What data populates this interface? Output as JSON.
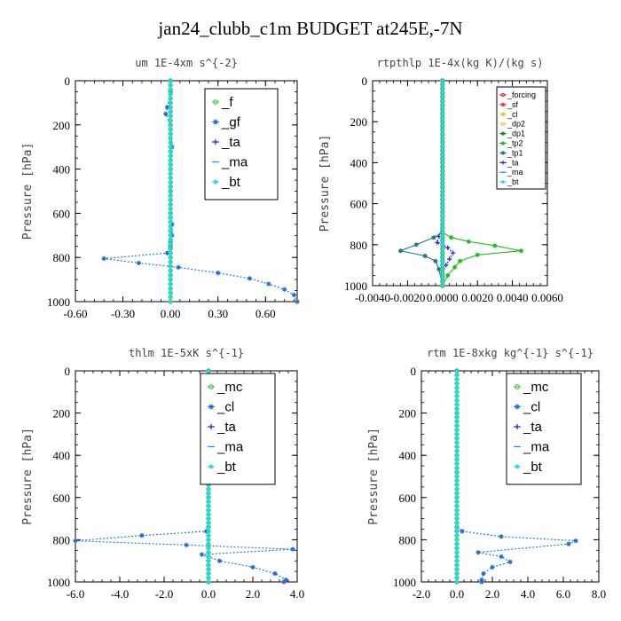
{
  "figure": {
    "title": "jan24_clubb_c1m  BUDGET at245E,-7N"
  },
  "chart_data": [
    {
      "type": "line",
      "title": "um  1E-4xm s^{-2}",
      "ylabel": "Pressure [hPa]",
      "xlim": [
        -0.6,
        0.8
      ],
      "ylim": [
        1000,
        0
      ],
      "xticks": [
        "-0.60",
        "-0.30",
        "0.00",
        "0.30",
        "0.60"
      ],
      "xtick_values": [
        -0.6,
        -0.3,
        0.0,
        0.3,
        0.6
      ],
      "yticks": [
        "0",
        "200",
        "400",
        "600",
        "800",
        "1000"
      ],
      "ytick_values": [
        0,
        200,
        400,
        600,
        800,
        1000
      ],
      "legend": {
        "position": "top-right",
        "fontsize": 15
      },
      "series": [
        {
          "name": "_f",
          "color": "#22cc22",
          "marker": "ring",
          "dashed": false,
          "x": [
            0,
            0,
            0,
            0,
            0,
            0,
            0,
            0,
            0,
            0,
            0
          ],
          "y": [
            0,
            100,
            200,
            300,
            400,
            500,
            600,
            700,
            800,
            900,
            1000
          ]
        },
        {
          "name": "_gf",
          "color": "#1f6fd6",
          "marker": "star",
          "dashed": true,
          "x": [
            0.0,
            0.0,
            -0.02,
            -0.03,
            0.0,
            0.01,
            0.0,
            0.0,
            0.0,
            0.01,
            0.01,
            0.0,
            0.0,
            0.0,
            -0.02,
            -0.42,
            -0.2,
            0.05,
            0.3,
            0.5,
            0.62,
            0.72,
            0.78,
            0.8
          ],
          "y": [
            0,
            50,
            120,
            150,
            200,
            300,
            400,
            500,
            600,
            650,
            700,
            730,
            750,
            760,
            780,
            805,
            825,
            845,
            870,
            895,
            920,
            945,
            970,
            1000
          ]
        },
        {
          "name": "_ta",
          "color": "#1a1ae6",
          "marker": "plus",
          "dashed": true,
          "x": [
            0,
            0,
            0,
            0,
            0,
            0
          ],
          "y": [
            0,
            200,
            400,
            600,
            800,
            1000
          ]
        },
        {
          "name": "_ma",
          "color": "#1aa0e0",
          "marker": "dash",
          "dashed": true,
          "x": [
            0,
            0,
            0,
            0,
            0,
            0
          ],
          "y": [
            0,
            200,
            400,
            600,
            800,
            1000
          ]
        },
        {
          "name": "_bt",
          "color": "#22dddd",
          "marker": "diamond",
          "dashed": false,
          "x": [
            0,
            0,
            0,
            0,
            0,
            0,
            0,
            0,
            0,
            0,
            0
          ],
          "y": [
            0,
            100,
            200,
            300,
            400,
            500,
            600,
            700,
            800,
            900,
            1000
          ]
        }
      ]
    },
    {
      "type": "line",
      "title": "rtpthlp  1E-4x(kg K)/(kg s)",
      "ylabel": "Pressure [hPa]",
      "xlim": [
        -0.004,
        0.006
      ],
      "ylim": [
        1000,
        0
      ],
      "xticks": [
        "-0.0040",
        "-0.0020",
        "0.0000",
        "0.0020",
        "0.0040",
        "0.0060"
      ],
      "xtick_values": [
        -0.004,
        -0.002,
        0.0,
        0.002,
        0.004,
        0.006
      ],
      "yticks": [
        "0",
        "200",
        "400",
        "600",
        "800",
        "1000"
      ],
      "ytick_values": [
        0,
        200,
        400,
        600,
        800,
        1000
      ],
      "legend": {
        "position": "top-right",
        "fontsize": 9
      },
      "series": [
        {
          "name": "_forcing",
          "color": "#dd2222",
          "marker": "ring",
          "dashed": false,
          "x": [
            0,
            0,
            0,
            0,
            0,
            0,
            0,
            0,
            0,
            0,
            0
          ],
          "y": [
            0,
            100,
            200,
            300,
            400,
            500,
            600,
            700,
            800,
            900,
            1000
          ]
        },
        {
          "name": "_sf",
          "color": "#ee3333",
          "marker": "star",
          "dashed": false,
          "x": [
            0,
            0,
            0,
            0,
            0,
            0
          ],
          "y": [
            0,
            200,
            400,
            600,
            800,
            1000
          ]
        },
        {
          "name": "_cl",
          "color": "#e8c020",
          "marker": "star",
          "dashed": false,
          "x": [
            0,
            0,
            0,
            0,
            0,
            0
          ],
          "y": [
            0,
            200,
            400,
            600,
            800,
            1000
          ]
        },
        {
          "name": "_dp2",
          "color": "#e0d060",
          "marker": "box",
          "dashed": false,
          "x": [
            0,
            0,
            0,
            0,
            0,
            0
          ],
          "y": [
            0,
            200,
            400,
            600,
            800,
            1000
          ]
        },
        {
          "name": "_dp1",
          "color": "#228822",
          "marker": "star",
          "dashed": false,
          "x": [
            0,
            0,
            0,
            0,
            0,
            0
          ],
          "y": [
            0,
            200,
            400,
            600,
            800,
            1000
          ]
        },
        {
          "name": "_tp2",
          "color": "#22bb22",
          "marker": "star",
          "dashed": false,
          "x": [
            0.0,
            0.0,
            0.0,
            0.0,
            0.0,
            0.0005,
            0.0015,
            0.003,
            0.0045,
            0.002,
            0.001,
            0.0007,
            0.0003,
            0.0
          ],
          "y": [
            0,
            200,
            400,
            600,
            740,
            765,
            785,
            805,
            830,
            850,
            880,
            910,
            950,
            1000
          ]
        },
        {
          "name": "_tp1",
          "color": "#227788",
          "marker": "star",
          "dashed": false,
          "x": [
            0.0,
            0.0,
            0.0,
            0.0,
            0.0,
            -0.0005,
            -0.0015,
            -0.0024,
            -0.001,
            -0.0004,
            -0.0002,
            0.0
          ],
          "y": [
            0,
            200,
            400,
            600,
            740,
            765,
            800,
            830,
            855,
            880,
            920,
            1000
          ]
        },
        {
          "name": "_ta",
          "color": "#1a1ae6",
          "marker": "plus",
          "dashed": true,
          "x": [
            0,
            0,
            -0.0002,
            -0.0003,
            0.0003,
            0.0006,
            0.0004,
            0.0002,
            0,
            0
          ],
          "y": [
            0,
            700,
            760,
            790,
            815,
            840,
            870,
            900,
            940,
            1000
          ]
        },
        {
          "name": "_ma",
          "color": "#1aa0e0",
          "marker": "dash",
          "dashed": true,
          "x": [
            0,
            0,
            0,
            0,
            0,
            0
          ],
          "y": [
            0,
            200,
            400,
            600,
            800,
            1000
          ]
        },
        {
          "name": "_bt",
          "color": "#22dddd",
          "marker": "diamond",
          "dashed": false,
          "x": [
            0,
            0,
            0,
            0,
            0,
            0
          ],
          "y": [
            0,
            200,
            400,
            600,
            800,
            1000
          ]
        }
      ]
    },
    {
      "type": "line",
      "title": "thlm  1E-5xK s^{-1}",
      "ylabel": "Pressure [hPa]",
      "xlim": [
        -6.0,
        4.0
      ],
      "ylim": [
        1000,
        0
      ],
      "xticks": [
        "-6.0",
        "-4.0",
        "-2.0",
        "0.0",
        "2.0",
        "4.0"
      ],
      "xtick_values": [
        -6.0,
        -4.0,
        -2.0,
        0.0,
        2.0,
        4.0
      ],
      "yticks": [
        "0",
        "200",
        "400",
        "600",
        "800",
        "1000"
      ],
      "ytick_values": [
        0,
        200,
        400,
        600,
        800,
        1000
      ],
      "legend": {
        "position": "top-right",
        "fontsize": 15
      },
      "series": [
        {
          "name": "_mc",
          "color": "#22cc22",
          "marker": "ring",
          "dashed": false,
          "x": [
            0,
            0,
            0,
            0,
            0,
            0,
            0,
            0,
            0,
            0,
            0
          ],
          "y": [
            0,
            100,
            200,
            300,
            400,
            500,
            600,
            700,
            800,
            900,
            1000
          ]
        },
        {
          "name": "_cl",
          "color": "#1f6fd6",
          "marker": "star",
          "dashed": true,
          "x": [
            0.0,
            0.0,
            0.0,
            0.0,
            0.0,
            -0.1,
            -3.0,
            -6.0,
            -1.0,
            3.8,
            -0.3,
            0.5,
            2.0,
            3.0,
            3.5,
            3.4
          ],
          "y": [
            0,
            200,
            400,
            600,
            740,
            760,
            780,
            805,
            825,
            845,
            870,
            900,
            930,
            960,
            990,
            1000
          ]
        },
        {
          "name": "_ta",
          "color": "#1a1ae6",
          "marker": "plus",
          "dashed": true,
          "x": [
            0,
            0,
            0,
            0,
            0,
            0
          ],
          "y": [
            0,
            200,
            400,
            600,
            800,
            1000
          ]
        },
        {
          "name": "_ma",
          "color": "#1aa0e0",
          "marker": "dash",
          "dashed": true,
          "x": [
            0,
            0,
            0,
            0,
            0,
            0
          ],
          "y": [
            0,
            200,
            400,
            600,
            800,
            1000
          ]
        },
        {
          "name": "_bt",
          "color": "#22dddd",
          "marker": "diamond",
          "dashed": false,
          "x": [
            0,
            0,
            0,
            0,
            0,
            0,
            0,
            0,
            0,
            0,
            0
          ],
          "y": [
            0,
            100,
            200,
            300,
            400,
            500,
            600,
            700,
            800,
            900,
            1000
          ]
        }
      ]
    },
    {
      "type": "line",
      "title": "rtm  1E-8xkg kg^{-1} s^{-1}",
      "ylabel": "Pressure [hPa]",
      "xlim": [
        -2.0,
        8.0
      ],
      "ylim": [
        1000,
        0
      ],
      "xticks": [
        "-2.0",
        "0.0",
        "2.0",
        "4.0",
        "6.0",
        "8.0"
      ],
      "xtick_values": [
        -2.0,
        0.0,
        2.0,
        4.0,
        6.0,
        8.0
      ],
      "yticks": [
        "0",
        "200",
        "400",
        "600",
        "800",
        "1000"
      ],
      "ytick_values": [
        0,
        200,
        400,
        600,
        800,
        1000
      ],
      "legend": {
        "position": "top-right",
        "fontsize": 15
      },
      "series": [
        {
          "name": "_mc",
          "color": "#22cc22",
          "marker": "ring",
          "dashed": false,
          "x": [
            0,
            0,
            0,
            0,
            0,
            0,
            0,
            0,
            0,
            0,
            0
          ],
          "y": [
            0,
            100,
            200,
            300,
            400,
            500,
            600,
            700,
            800,
            900,
            1000
          ]
        },
        {
          "name": "_cl",
          "color": "#1f6fd6",
          "marker": "star",
          "dashed": true,
          "x": [
            0.0,
            0.0,
            0.0,
            0.0,
            0.0,
            0.3,
            2.5,
            6.7,
            6.3,
            1.2,
            2.5,
            3.0,
            2.0,
            1.5,
            1.4,
            1.4
          ],
          "y": [
            0,
            200,
            400,
            600,
            740,
            760,
            785,
            805,
            820,
            860,
            880,
            905,
            930,
            960,
            990,
            1000
          ]
        },
        {
          "name": "_ta",
          "color": "#1a1ae6",
          "marker": "plus",
          "dashed": true,
          "x": [
            0,
            0,
            0,
            0,
            0,
            0
          ],
          "y": [
            0,
            200,
            400,
            600,
            800,
            1000
          ]
        },
        {
          "name": "_ma",
          "color": "#1aa0e0",
          "marker": "dash",
          "dashed": true,
          "x": [
            0,
            0,
            0,
            0,
            0,
            0
          ],
          "y": [
            0,
            200,
            400,
            600,
            800,
            1000
          ]
        },
        {
          "name": "_bt",
          "color": "#22dddd",
          "marker": "diamond",
          "dashed": false,
          "x": [
            0,
            0,
            0,
            0,
            0,
            0,
            0,
            0,
            0,
            0,
            0
          ],
          "y": [
            0,
            100,
            200,
            300,
            400,
            500,
            600,
            700,
            800,
            900,
            1000
          ]
        }
      ]
    }
  ]
}
